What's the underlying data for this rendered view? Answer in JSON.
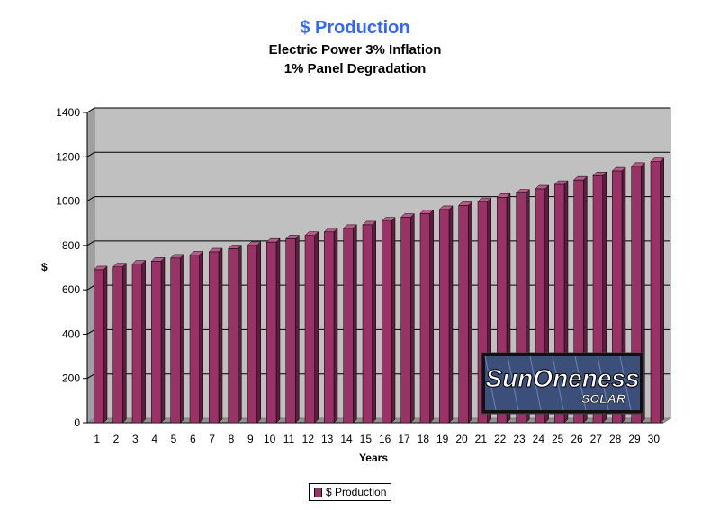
{
  "chart_data": {
    "type": "bar",
    "title": "$ Production",
    "subtitle_lines": [
      "Electric Power 3% Inflation",
      "1% Panel Degradation"
    ],
    "xlabel": "Years",
    "ylabel": "$",
    "ylim": [
      0,
      1400
    ],
    "yticks": [
      0,
      200,
      400,
      600,
      800,
      1000,
      1200,
      1400
    ],
    "grid": true,
    "legend_position": "bottom",
    "categories": [
      "1",
      "2",
      "3",
      "4",
      "5",
      "6",
      "7",
      "8",
      "9",
      "10",
      "11",
      "12",
      "13",
      "14",
      "15",
      "16",
      "17",
      "18",
      "19",
      "20",
      "21",
      "22",
      "23",
      "24",
      "25",
      "26",
      "27",
      "28",
      "29",
      "30"
    ],
    "series": [
      {
        "name": "$ Production",
        "values": [
          690,
          703,
          716,
          729,
          743,
          757,
          771,
          785,
          800,
          815,
          830,
          845,
          861,
          877,
          893,
          910,
          927,
          944,
          962,
          980,
          998,
          1017,
          1036,
          1055,
          1075,
          1095,
          1115,
          1136,
          1157,
          1178
        ]
      }
    ]
  },
  "logo": {
    "text": "SunOneness",
    "subtext": "SOLAR"
  },
  "colors": {
    "title": "#3366ff",
    "bar": "#993366",
    "plot_bg": "#c0c0c0"
  }
}
